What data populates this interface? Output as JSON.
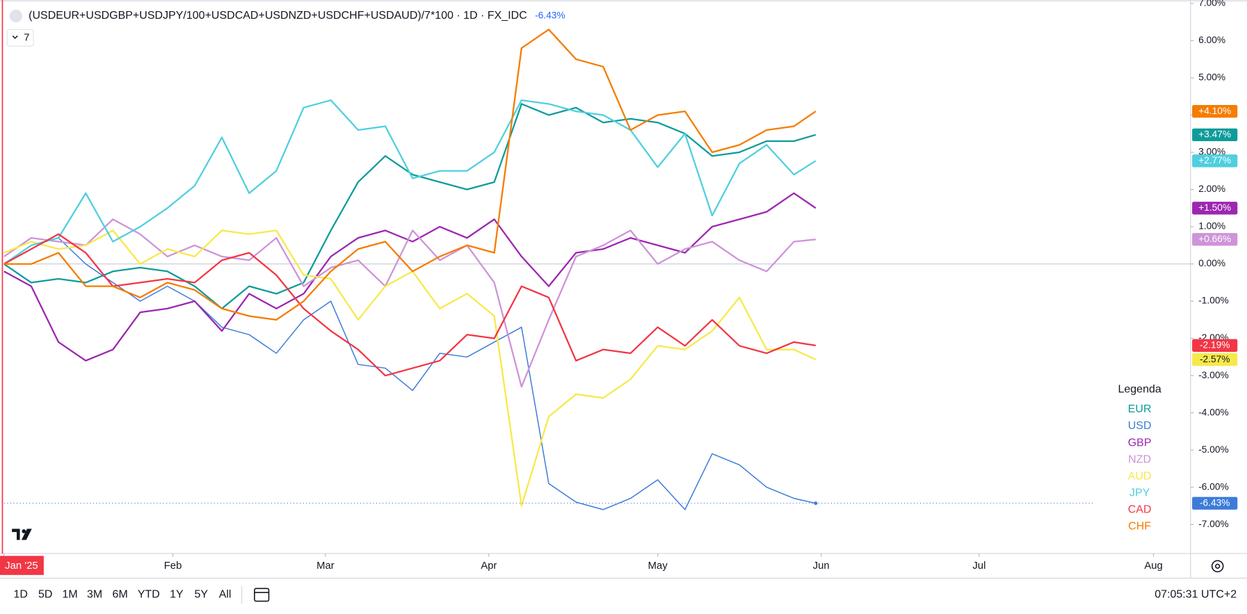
{
  "header": {
    "title": "(USDEUR+USDGBP+USDJPY/100+USDCAD+USDNZD+USDCHF+USDAUD)/7*100 · 1D · FX_IDC",
    "change": "-6.43%",
    "indicator_count": "7"
  },
  "chart_data": {
    "type": "line",
    "legend_title": "Legenda",
    "legend": "bottom-right",
    "grid": false,
    "zero_line": true,
    "x": [
      0,
      5,
      10,
      15,
      20,
      25,
      30,
      35,
      40,
      45,
      50,
      55,
      60,
      65,
      70,
      75,
      80,
      85,
      90,
      95,
      100,
      105,
      110,
      115,
      120,
      125,
      130,
      135,
      140,
      145,
      149
    ],
    "xlim": [
      0,
      217.8
    ],
    "xticks": [
      {
        "value": 0,
        "label": "Jan '25"
      },
      {
        "value": 31,
        "label": "Feb"
      },
      {
        "value": 59,
        "label": "Mar"
      },
      {
        "value": 89,
        "label": "Apr"
      },
      {
        "value": 120,
        "label": "May"
      },
      {
        "value": 150,
        "label": "Jun"
      },
      {
        "value": 179,
        "label": "Jul"
      },
      {
        "value": 211,
        "label": "Aug"
      }
    ],
    "ylim": [
      -7.78,
      7.09
    ],
    "yticks": [
      {
        "value": 7,
        "label": "7.00%"
      },
      {
        "value": 6,
        "label": "6.00%"
      },
      {
        "value": 5,
        "label": "5.00%"
      },
      {
        "value": 4,
        "label": "4.00%"
      },
      {
        "value": 3,
        "label": "3.00%"
      },
      {
        "value": 2,
        "label": "2.00%"
      },
      {
        "value": 1,
        "label": "1.00%"
      },
      {
        "value": 0,
        "label": "0.00%"
      },
      {
        "value": -1,
        "label": "-1.00%"
      },
      {
        "value": -2,
        "label": "-2.00%"
      },
      {
        "value": -3,
        "label": "-3.00%"
      },
      {
        "value": -4,
        "label": "-4.00%"
      },
      {
        "value": -5,
        "label": "-5.00%"
      },
      {
        "value": -6,
        "label": "-6.00%"
      },
      {
        "value": -7,
        "label": "-7.00%"
      }
    ],
    "series": [
      {
        "name": "EUR",
        "color": "#0f9b9b",
        "width": 2,
        "values": [
          0,
          -0.5,
          -0.4,
          -0.5,
          -0.2,
          -0.1,
          -0.2,
          -0.6,
          -1.2,
          -0.6,
          -0.8,
          -0.5,
          0.9,
          2.2,
          2.9,
          2.4,
          2.2,
          2.0,
          2.2,
          4.3,
          4.0,
          4.2,
          3.8,
          3.9,
          3.8,
          3.5,
          2.9,
          3.0,
          3.3,
          3.3,
          3.47
        ],
        "value_labels": [
          null,
          null,
          null,
          null,
          null,
          null,
          null,
          null,
          null,
          null,
          null,
          null,
          null,
          null,
          null,
          null,
          null,
          null,
          null,
          null,
          null,
          null,
          null,
          null,
          null,
          null,
          null,
          null,
          null,
          null,
          "+3.47%"
        ]
      },
      {
        "name": "USD",
        "color": "#3d7bd9",
        "width": 1.3,
        "values": [
          0,
          0.5,
          0.7,
          0,
          -0.5,
          -1.0,
          -0.6,
          -1.0,
          -1.7,
          -1.9,
          -2.4,
          -1.5,
          -1.0,
          -2.7,
          -2.8,
          -3.4,
          -2.4,
          -2.5,
          -2.1,
          -1.7,
          -5.9,
          -6.4,
          -6.6,
          -6.3,
          -5.8,
          -6.6,
          -5.1,
          -5.4,
          -6.0,
          -6.3,
          -6.43
        ],
        "value_labels": [
          null,
          null,
          null,
          null,
          null,
          null,
          null,
          null,
          null,
          null,
          null,
          null,
          null,
          null,
          null,
          null,
          null,
          null,
          null,
          null,
          null,
          null,
          null,
          null,
          null,
          null,
          null,
          null,
          null,
          null,
          "-6.43%"
        ]
      },
      {
        "name": "GBP",
        "color": "#9c27b0",
        "width": 2,
        "values": [
          -0.2,
          -0.6,
          -2.1,
          -2.6,
          -2.3,
          -1.3,
          -1.2,
          -1.0,
          -1.8,
          -0.8,
          -1.2,
          -0.8,
          0.2,
          0.7,
          0.9,
          0.6,
          1.0,
          0.7,
          1.2,
          0.2,
          -0.6,
          0.3,
          0.4,
          0.7,
          0.5,
          0.3,
          1.0,
          1.2,
          1.4,
          1.9,
          1.5
        ],
        "value_labels": [
          null,
          null,
          null,
          null,
          null,
          null,
          null,
          null,
          null,
          null,
          null,
          null,
          null,
          null,
          null,
          null,
          null,
          null,
          null,
          null,
          null,
          null,
          null,
          null,
          null,
          null,
          null,
          null,
          null,
          null,
          "+1.50%"
        ]
      },
      {
        "name": "NZD",
        "color": "#ce93d8",
        "width": 2,
        "values": [
          0.2,
          0.7,
          0.6,
          0.5,
          1.2,
          0.8,
          0.2,
          0.5,
          0.2,
          0.1,
          0.7,
          -0.6,
          -0.1,
          0.1,
          -0.6,
          0.9,
          0.1,
          0.5,
          -0.5,
          -3.3,
          -1.5,
          0.2,
          0.5,
          0.9,
          0.0,
          0.4,
          0.6,
          0.1,
          -0.2,
          0.6,
          0.66
        ],
        "value_labels": [
          null,
          null,
          null,
          null,
          null,
          null,
          null,
          null,
          null,
          null,
          null,
          null,
          null,
          null,
          null,
          null,
          null,
          null,
          null,
          null,
          null,
          null,
          null,
          null,
          null,
          null,
          null,
          null,
          null,
          null,
          "+0.66%"
        ]
      },
      {
        "name": "AUD",
        "color": "#f7e94a",
        "width": 2,
        "values": [
          0.3,
          0.6,
          0.4,
          0.5,
          0.9,
          0.0,
          0.4,
          0.2,
          0.9,
          0.8,
          0.9,
          -0.3,
          -0.4,
          -1.5,
          -0.6,
          -0.2,
          -1.2,
          -0.8,
          -1.4,
          -6.5,
          -4.1,
          -3.5,
          -3.6,
          -3.1,
          -2.2,
          -2.3,
          -1.8,
          -0.9,
          -2.3,
          -2.3,
          -2.57
        ],
        "value_labels": [
          null,
          null,
          null,
          null,
          null,
          null,
          null,
          null,
          null,
          null,
          null,
          null,
          null,
          null,
          null,
          null,
          null,
          null,
          null,
          null,
          null,
          null,
          null,
          null,
          null,
          null,
          null,
          null,
          null,
          null,
          "-2.57%"
        ]
      },
      {
        "name": "JPY",
        "color": "#4fcfdf",
        "width": 2,
        "values": [
          0,
          0.5,
          0.7,
          1.9,
          0.6,
          1.0,
          1.5,
          2.1,
          3.4,
          1.9,
          2.5,
          4.2,
          4.4,
          3.6,
          3.7,
          2.3,
          2.5,
          2.5,
          3.0,
          4.4,
          4.3,
          4.1,
          4.0,
          3.6,
          2.6,
          3.5,
          1.3,
          2.7,
          3.2,
          2.4,
          2.77
        ],
        "value_labels": [
          null,
          null,
          null,
          null,
          null,
          null,
          null,
          null,
          null,
          null,
          null,
          null,
          null,
          null,
          null,
          null,
          null,
          null,
          null,
          null,
          null,
          null,
          null,
          null,
          null,
          null,
          null,
          null,
          null,
          null,
          "+2.77%"
        ]
      },
      {
        "name": "CAD",
        "color": "#f23645",
        "width": 2,
        "values": [
          0,
          0.4,
          0.8,
          0.3,
          -0.6,
          -0.5,
          -0.4,
          -0.5,
          0.1,
          0.3,
          -0.3,
          -1.2,
          -1.8,
          -2.3,
          -3.0,
          -2.8,
          -2.6,
          -1.9,
          -2.0,
          -0.6,
          -0.9,
          -2.6,
          -2.3,
          -2.4,
          -1.7,
          -2.2,
          -1.5,
          -2.2,
          -2.4,
          -2.1,
          -2.19
        ],
        "value_labels": [
          null,
          null,
          null,
          null,
          null,
          null,
          null,
          null,
          null,
          null,
          null,
          null,
          null,
          null,
          null,
          null,
          null,
          null,
          null,
          null,
          null,
          null,
          null,
          null,
          null,
          null,
          null,
          null,
          null,
          null,
          "-2.19%"
        ]
      },
      {
        "name": "CHF",
        "color": "#f57c00",
        "width": 2,
        "values": [
          0,
          0,
          0.3,
          -0.6,
          -0.6,
          -0.9,
          -0.5,
          -0.7,
          -1.2,
          -1.4,
          -1.5,
          -1.0,
          -0.2,
          0.4,
          0.6,
          -0.2,
          0.2,
          0.5,
          0.3,
          5.8,
          6.3,
          5.5,
          5.3,
          3.6,
          4.0,
          4.1,
          3.0,
          3.2,
          3.6,
          3.7,
          4.1
        ],
        "value_labels": [
          null,
          null,
          null,
          null,
          null,
          null,
          null,
          null,
          null,
          null,
          null,
          null,
          null,
          null,
          null,
          null,
          null,
          null,
          null,
          null,
          null,
          null,
          null,
          null,
          null,
          null,
          null,
          null,
          null,
          null,
          "+4.10%"
        ]
      }
    ]
  },
  "toolbar": {
    "ranges": [
      "1D",
      "5D",
      "1M",
      "3M",
      "6M",
      "YTD",
      "1Y",
      "5Y",
      "All"
    ],
    "clock": "07:05:31 UTC+2"
  }
}
